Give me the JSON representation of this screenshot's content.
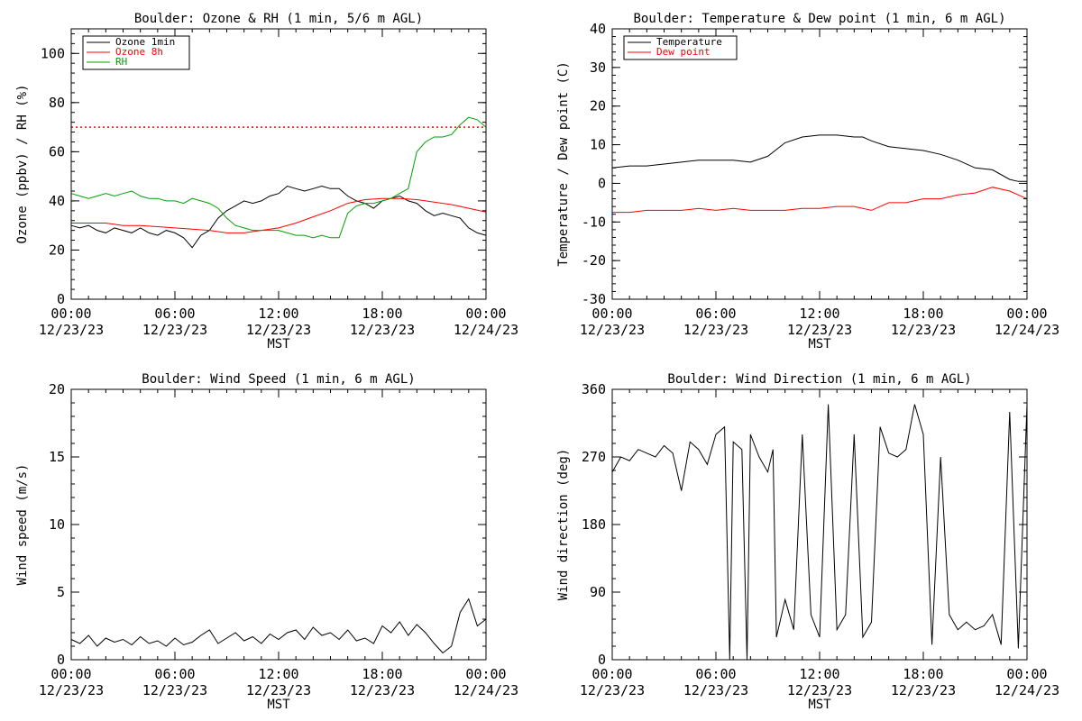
{
  "chart_data": [
    {
      "type": "line",
      "title": "Boulder: Ozone & RH (1 min, 5/6 m AGL)",
      "xlabel": "MST",
      "ylabel": "Ozone (ppbv) / RH (%)",
      "ylim": [
        0,
        110
      ],
      "yticks": [
        0,
        20,
        40,
        60,
        80,
        100
      ],
      "xticks": [
        {
          "time": "00:00",
          "date": "12/23/23"
        },
        {
          "time": "06:00",
          "date": "12/23/23"
        },
        {
          "time": "12:00",
          "date": "12/23/23"
        },
        {
          "time": "18:00",
          "date": "12/23/23"
        },
        {
          "time": "00:00",
          "date": "12/24/23"
        }
      ],
      "x_unit": "hours since 00:00 12/23/23",
      "xlim": [
        0,
        24
      ],
      "legend": "top-left",
      "reference_line": {
        "y": 70,
        "color": "#ff0000",
        "style": "dotted"
      },
      "series": [
        {
          "name": "Ozone 1min",
          "color": "#000000",
          "x": [
            0,
            0.5,
            1,
            1.5,
            2,
            2.5,
            3,
            3.5,
            4,
            4.5,
            5,
            5.5,
            6,
            6.5,
            7,
            7.5,
            8,
            8.5,
            9,
            9.5,
            10,
            10.5,
            11,
            11.5,
            12,
            12.5,
            13,
            13.5,
            14,
            14.5,
            15,
            15.5,
            16,
            16.5,
            17,
            17.5,
            18,
            18.5,
            19,
            19.5,
            20,
            20.5,
            21,
            21.5,
            22,
            22.5,
            23,
            23.5,
            24
          ],
          "y": [
            30,
            29,
            30,
            28,
            27,
            29,
            28,
            27,
            29,
            27,
            26,
            28,
            27,
            25,
            21,
            26,
            28,
            33,
            36,
            38,
            40,
            39,
            40,
            42,
            43,
            46,
            45,
            44,
            45,
            46,
            45,
            45,
            42,
            40,
            39,
            37,
            40,
            41,
            42,
            40,
            39,
            36,
            34,
            35,
            34,
            33,
            29,
            27,
            26
          ]
        },
        {
          "name": "Ozone 8h",
          "color": "#ff0000",
          "x": [
            0,
            1,
            2,
            3,
            4,
            5,
            6,
            7,
            8,
            9,
            10,
            11,
            12,
            13,
            14,
            15,
            16,
            17,
            18,
            19,
            20,
            21,
            22,
            23,
            24
          ],
          "y": [
            31,
            31,
            31,
            30,
            30,
            29.5,
            29,
            28.5,
            28,
            27,
            27,
            28,
            29,
            31,
            33.5,
            36,
            39,
            40.5,
            41,
            41,
            40.5,
            39.5,
            38.5,
            37,
            35.5
          ]
        },
        {
          "name": "RH",
          "color": "#00a000",
          "x": [
            0,
            0.5,
            1,
            1.5,
            2,
            2.5,
            3,
            3.5,
            4,
            4.5,
            5,
            5.5,
            6,
            6.5,
            7,
            7.5,
            8,
            8.5,
            9,
            9.5,
            10,
            10.5,
            11,
            11.5,
            12,
            12.5,
            13,
            13.5,
            14,
            14.5,
            15,
            15.5,
            16,
            16.5,
            17,
            17.5,
            18,
            18.5,
            19,
            19.5,
            20,
            20.5,
            21,
            21.5,
            22,
            22.5,
            23,
            23.5,
            24
          ],
          "y": [
            43,
            42,
            41,
            42,
            43,
            42,
            43,
            44,
            42,
            41,
            41,
            40,
            40,
            39,
            41,
            40,
            39,
            37,
            33,
            30,
            29,
            28,
            28,
            28,
            28,
            27,
            26,
            26,
            25,
            26,
            25,
            25,
            35,
            38,
            39,
            39,
            40,
            41,
            43,
            45,
            60,
            64,
            66,
            66,
            67,
            71,
            74,
            73,
            70
          ]
        }
      ]
    },
    {
      "type": "line",
      "title": "Boulder: Temperature & Dew point (1 min, 6 m AGL)",
      "xlabel": "MST",
      "ylabel": "Temperature / Dew point (C)",
      "ylim": [
        -30,
        40
      ],
      "yticks": [
        -30,
        -20,
        -10,
        0,
        10,
        20,
        30,
        40
      ],
      "xticks": [
        {
          "time": "00:00",
          "date": "12/23/23"
        },
        {
          "time": "06:00",
          "date": "12/23/23"
        },
        {
          "time": "12:00",
          "date": "12/23/23"
        },
        {
          "time": "18:00",
          "date": "12/23/23"
        },
        {
          "time": "00:00",
          "date": "12/24/23"
        }
      ],
      "x_unit": "hours since 00:00 12/23/23",
      "xlim": [
        0,
        24
      ],
      "legend": "top-left",
      "series": [
        {
          "name": "Temperature",
          "color": "#000000",
          "x": [
            0,
            1,
            2,
            3,
            4,
            5,
            6,
            7,
            8,
            9,
            10,
            11,
            12,
            13,
            14,
            14.5,
            15,
            16,
            17,
            18,
            19,
            20,
            21,
            22,
            23,
            23.5,
            24
          ],
          "y": [
            4,
            4.5,
            4.5,
            5,
            5.5,
            6,
            6,
            6,
            5.5,
            7,
            10.5,
            12,
            12.5,
            12.5,
            12,
            12,
            11,
            9.5,
            9,
            8.5,
            7.5,
            6,
            4,
            3.5,
            1,
            0.5,
            0.5
          ]
        },
        {
          "name": "Dew point",
          "color": "#ff0000",
          "x": [
            0,
            1,
            2,
            3,
            4,
            5,
            6,
            7,
            8,
            9,
            10,
            11,
            12,
            13,
            14,
            15,
            16,
            17,
            18,
            19,
            20,
            21,
            22,
            23,
            24
          ],
          "y": [
            -7.5,
            -7.5,
            -7,
            -7,
            -7,
            -6.5,
            -7,
            -6.5,
            -7,
            -7,
            -7,
            -6.5,
            -6.5,
            -6,
            -6,
            -7,
            -5,
            -5,
            -4,
            -4,
            -3,
            -2.5,
            -1,
            -2,
            -4
          ]
        }
      ]
    },
    {
      "type": "line",
      "title": "Boulder: Wind Speed (1 min, 6 m AGL)",
      "xlabel": "MST",
      "ylabel": "Wind speed (m/s)",
      "ylim": [
        0,
        20
      ],
      "yticks": [
        0,
        5,
        10,
        15,
        20
      ],
      "xticks": [
        {
          "time": "00:00",
          "date": "12/23/23"
        },
        {
          "time": "06:00",
          "date": "12/23/23"
        },
        {
          "time": "12:00",
          "date": "12/23/23"
        },
        {
          "time": "18:00",
          "date": "12/23/23"
        },
        {
          "time": "00:00",
          "date": "12/24/23"
        }
      ],
      "x_unit": "hours since 00:00 12/23/23",
      "xlim": [
        0,
        24
      ],
      "series": [
        {
          "name": "",
          "color": "#000000",
          "x": [
            0,
            0.5,
            1,
            1.5,
            2,
            2.5,
            3,
            3.5,
            4,
            4.5,
            5,
            5.5,
            6,
            6.5,
            7,
            7.5,
            8,
            8.5,
            9,
            9.5,
            10,
            10.5,
            11,
            11.5,
            12,
            12.5,
            13,
            13.5,
            14,
            14.5,
            15,
            15.5,
            16,
            16.5,
            17,
            17.5,
            18,
            18.5,
            19,
            19.5,
            20,
            20.5,
            21,
            21.5,
            22,
            22.5,
            23,
            23.5,
            24
          ],
          "y": [
            1.5,
            1.2,
            1.8,
            1.0,
            1.6,
            1.3,
            1.5,
            1.1,
            1.7,
            1.2,
            1.4,
            1.0,
            1.6,
            1.1,
            1.3,
            1.8,
            2.2,
            1.2,
            1.6,
            2.0,
            1.4,
            1.7,
            1.2,
            1.9,
            1.5,
            2.0,
            2.2,
            1.5,
            2.4,
            1.8,
            2.0,
            1.5,
            2.2,
            1.4,
            1.6,
            1.2,
            2.5,
            2.0,
            2.8,
            1.8,
            2.6,
            2.0,
            1.2,
            0.5,
            1.0,
            3.5,
            4.5,
            2.5,
            3.0
          ]
        }
      ]
    },
    {
      "type": "line",
      "title": "Boulder: Wind Direction (1 min, 6 m AGL)",
      "xlabel": "MST",
      "ylabel": "Wind direction (deg)",
      "ylim": [
        0,
        360
      ],
      "yticks": [
        0,
        90,
        180,
        270,
        360
      ],
      "xticks": [
        {
          "time": "00:00",
          "date": "12/23/23"
        },
        {
          "time": "06:00",
          "date": "12/23/23"
        },
        {
          "time": "12:00",
          "date": "12/23/23"
        },
        {
          "time": "18:00",
          "date": "12/23/23"
        },
        {
          "time": "00:00",
          "date": "12/24/23"
        }
      ],
      "x_unit": "hours since 00:00 12/23/23",
      "xlim": [
        0,
        24
      ],
      "series": [
        {
          "name": "",
          "color": "#000000",
          "x": [
            0,
            0.5,
            1,
            1.5,
            2,
            2.5,
            3,
            3.5,
            4,
            4.5,
            5,
            5.5,
            6,
            6.5,
            6.8,
            7,
            7.5,
            7.8,
            8,
            8.5,
            9,
            9.3,
            9.5,
            10,
            10.5,
            11,
            11.5,
            12,
            12.5,
            13,
            13.5,
            14,
            14.5,
            15,
            15.5,
            16,
            16.5,
            17,
            17.5,
            18,
            18.5,
            19,
            19.5,
            20,
            20.5,
            21,
            21.5,
            22,
            22.5,
            23,
            23.5,
            24
          ],
          "y": [
            250,
            270,
            265,
            280,
            275,
            270,
            285,
            275,
            225,
            290,
            280,
            260,
            300,
            310,
            0,
            290,
            280,
            0,
            300,
            270,
            250,
            280,
            30,
            80,
            40,
            300,
            60,
            30,
            340,
            40,
            60,
            300,
            30,
            50,
            310,
            275,
            270,
            280,
            340,
            300,
            20,
            270,
            60,
            40,
            50,
            40,
            45,
            60,
            20,
            330,
            15,
            340
          ]
        }
      ]
    }
  ]
}
